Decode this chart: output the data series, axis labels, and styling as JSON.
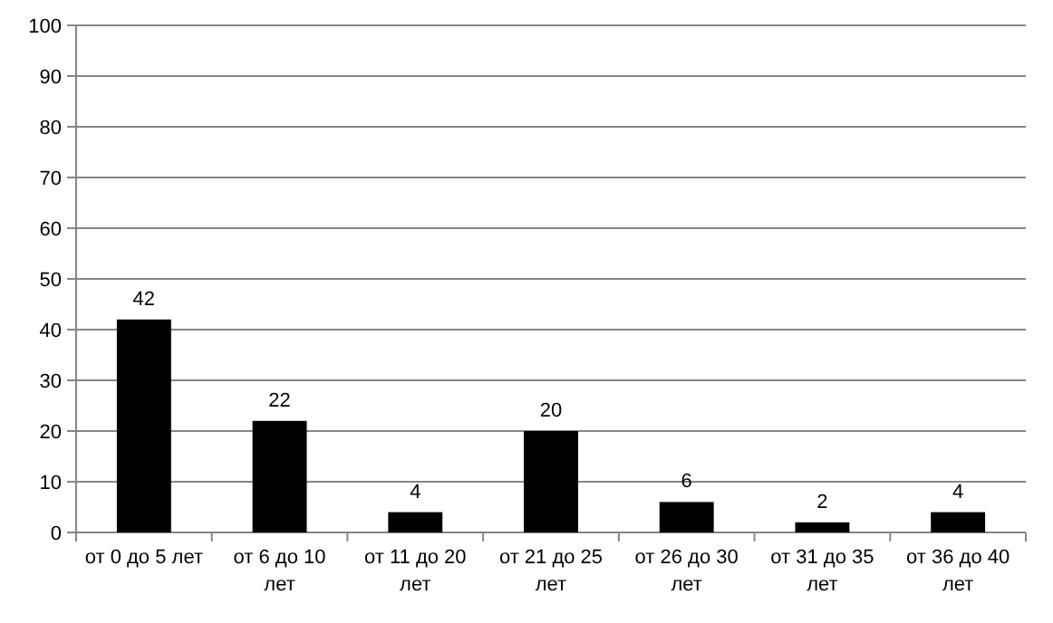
{
  "chart_data": {
    "type": "bar",
    "categories": [
      "от 0 до 5 лет",
      "от 6 до 10 лет",
      "от 11 до 20 лет",
      "от 21 до 25 лет",
      "от 26 до 30 лет",
      "от 31 до 35 лет",
      "от 36 до 40 лет"
    ],
    "values": [
      42,
      22,
      4,
      20,
      6,
      2,
      4
    ],
    "color": "#000000",
    "ylim": [
      0,
      100
    ],
    "yticks": [
      0,
      10,
      20,
      30,
      40,
      50,
      60,
      70,
      80,
      90,
      100
    ],
    "grid": "y",
    "data_labels": true
  }
}
